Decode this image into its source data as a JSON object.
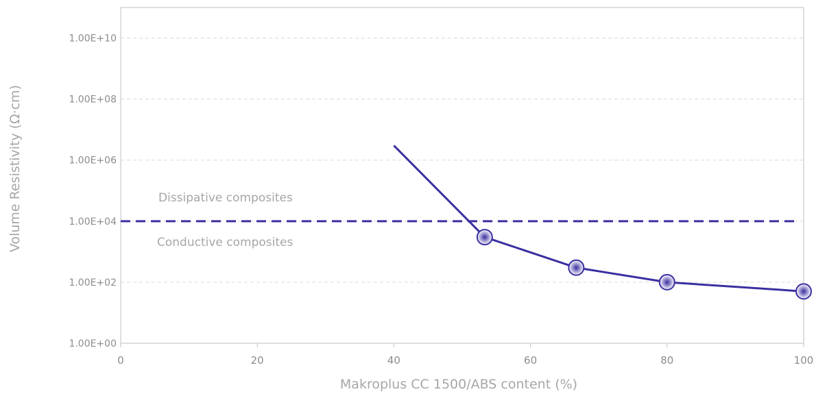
{
  "chart_data": {
    "type": "line",
    "title": "",
    "xlabel": "Makroplus CC 1500/ABS content (%)",
    "ylabel": "Volume Resistivity (Ω·cm)",
    "x_scale": "linear",
    "y_scale": "log",
    "xlim": [
      0,
      100
    ],
    "ylim": [
      1,
      100000000000
    ],
    "x_ticks": [
      0,
      20,
      40,
      60,
      80,
      100
    ],
    "x_tick_labels": [
      "0",
      "20",
      "40",
      "60",
      "80",
      "100"
    ],
    "y_ticks": [
      1,
      100,
      10000,
      1000000,
      100000000,
      10000000000
    ],
    "y_tick_labels": [
      "1.00E+00",
      "1.00E+02",
      "1.00E+04",
      "1.00E+06",
      "1.00E+08",
      "1.00E+10"
    ],
    "grid": "horizontal dashed",
    "series": [
      {
        "x": [
          40,
          53.3,
          66.7,
          80,
          100
        ],
        "y": [
          3000000,
          3000,
          300,
          100,
          50
        ],
        "markers": [
          false,
          true,
          true,
          true,
          true
        ],
        "color": "#3a2fa0"
      }
    ],
    "threshold": {
      "y": 10000,
      "style": "dashed",
      "color": "#3a2fa0"
    },
    "annotations": [
      {
        "text": "Dissipative composites"
      },
      {
        "text": "Conductive composites"
      }
    ]
  },
  "colors": {
    "series": "#3a2fa0",
    "marker_fill_center": "#3a2fa0",
    "marker_fill_edge": "#ffffff",
    "axis": "#bfbfbf",
    "grid": "#d9d9d9",
    "label_text": "#a6a6a6",
    "tick_text": "#8c8c8c"
  }
}
